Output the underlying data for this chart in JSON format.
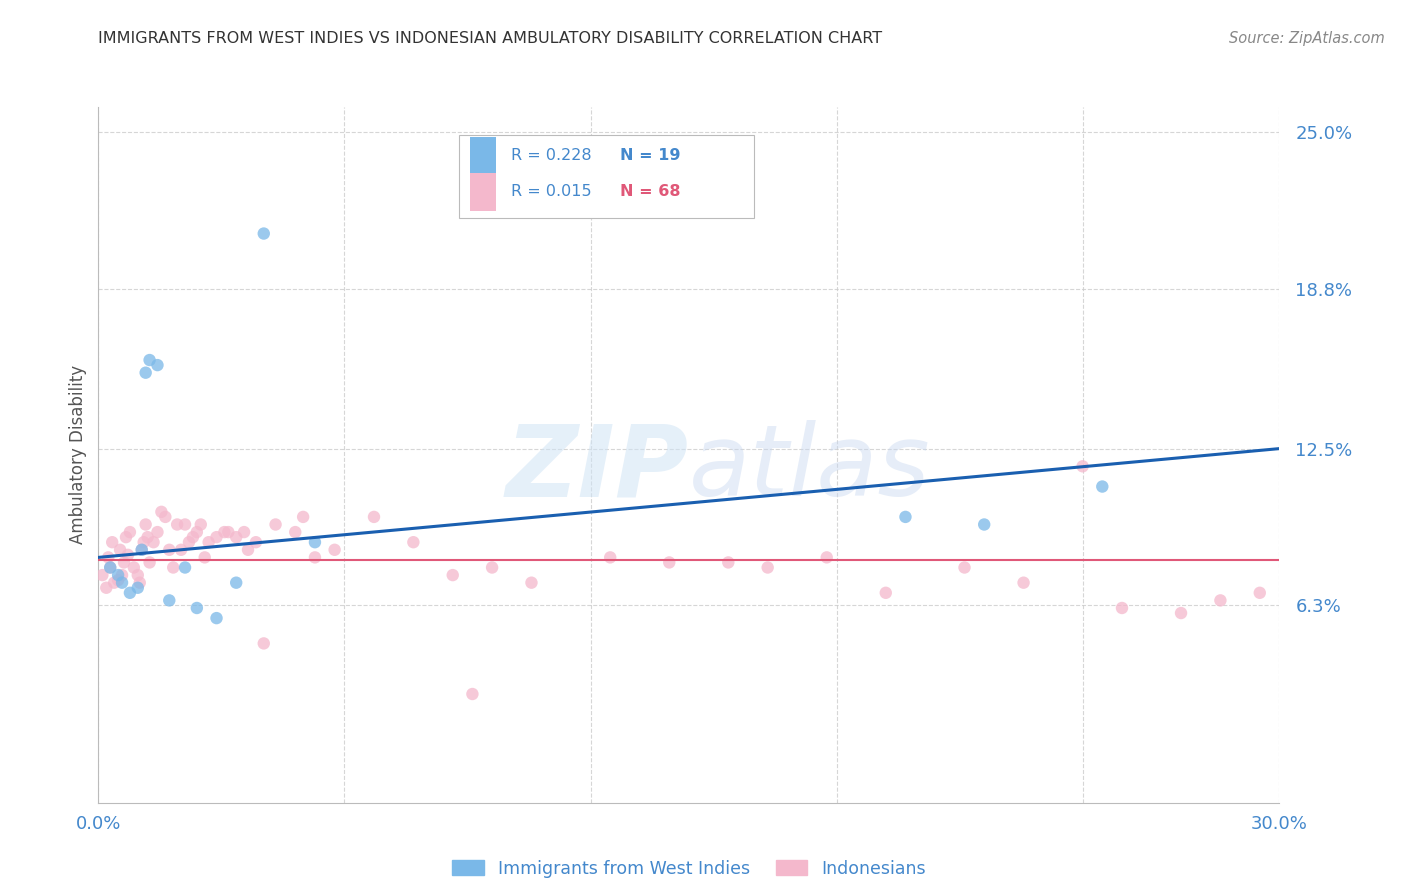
{
  "title": "IMMIGRANTS FROM WEST INDIES VS INDONESIAN AMBULATORY DISABILITY CORRELATION CHART",
  "source": "Source: ZipAtlas.com",
  "ylabel": "Ambulatory Disability",
  "xmin": 0.0,
  "xmax": 30.0,
  "ymin": -1.5,
  "ymax": 26.0,
  "yticks": [
    6.3,
    12.5,
    18.8,
    25.0
  ],
  "ytick_labels": [
    "6.3%",
    "12.5%",
    "18.8%",
    "25.0%"
  ],
  "legend_r1": "R = 0.228",
  "legend_n1": "N = 19",
  "legend_r2": "R = 0.015",
  "legend_n2": "N = 68",
  "label_west_indies": "Immigrants from West Indies",
  "label_indonesians": "Indonesians",
  "color_blue": "#7ab8e8",
  "color_pink": "#f4b8cc",
  "color_line_blue": "#1a5fb0",
  "color_line_pink": "#e05878",
  "color_title": "#333333",
  "color_source": "#888888",
  "color_axis_label": "#4488cc",
  "color_legend_r": "#4488cc",
  "color_legend_n_blue": "#4488cc",
  "color_legend_n_pink": "#e05878",
  "west_indies_x": [
    0.3,
    0.5,
    0.6,
    0.8,
    1.0,
    1.1,
    1.2,
    1.3,
    1.5,
    1.8,
    2.2,
    2.5,
    3.0,
    3.5,
    4.2,
    5.5,
    20.5,
    22.5,
    25.5
  ],
  "west_indies_y": [
    7.8,
    7.5,
    7.2,
    6.8,
    7.0,
    8.5,
    15.5,
    16.0,
    15.8,
    6.5,
    7.8,
    6.2,
    5.8,
    7.2,
    21.0,
    8.8,
    9.8,
    9.5,
    11.0
  ],
  "indonesians_x": [
    0.1,
    0.2,
    0.25,
    0.3,
    0.35,
    0.4,
    0.5,
    0.55,
    0.6,
    0.65,
    0.7,
    0.75,
    0.8,
    0.9,
    1.0,
    1.05,
    1.1,
    1.15,
    1.2,
    1.25,
    1.3,
    1.4,
    1.5,
    1.6,
    1.7,
    1.8,
    1.9,
    2.0,
    2.1,
    2.2,
    2.3,
    2.4,
    2.5,
    2.6,
    2.7,
    2.8,
    3.0,
    3.2,
    3.3,
    3.5,
    3.7,
    3.8,
    4.0,
    4.2,
    4.5,
    5.0,
    5.2,
    5.5,
    6.0,
    7.0,
    8.0,
    9.0,
    9.5,
    10.0,
    11.0,
    13.0,
    14.5,
    16.0,
    17.0,
    18.5,
    20.0,
    22.0,
    23.5,
    25.0,
    26.0,
    27.5,
    28.5,
    29.5
  ],
  "indonesians_y": [
    7.5,
    7.0,
    8.2,
    7.8,
    8.8,
    7.2,
    7.3,
    8.5,
    7.5,
    8.0,
    9.0,
    8.3,
    9.2,
    7.8,
    7.5,
    7.2,
    8.5,
    8.8,
    9.5,
    9.0,
    8.0,
    8.8,
    9.2,
    10.0,
    9.8,
    8.5,
    7.8,
    9.5,
    8.5,
    9.5,
    8.8,
    9.0,
    9.2,
    9.5,
    8.2,
    8.8,
    9.0,
    9.2,
    9.2,
    9.0,
    9.2,
    8.5,
    8.8,
    4.8,
    9.5,
    9.2,
    9.8,
    8.2,
    8.5,
    9.8,
    8.8,
    7.5,
    2.8,
    7.8,
    7.2,
    8.2,
    8.0,
    8.0,
    7.8,
    8.2,
    6.8,
    7.8,
    7.2,
    11.8,
    6.2,
    6.0,
    6.5,
    6.8
  ],
  "blue_trend_x0": 0.0,
  "blue_trend_x1": 30.0,
  "blue_trend_y0": 8.2,
  "blue_trend_y1": 12.5,
  "pink_trend_y": 8.1,
  "watermark_zip": "ZIP",
  "watermark_atlas": "atlas",
  "background_color": "#ffffff",
  "grid_color": "#cccccc",
  "grid_alpha": 0.8,
  "scatter_size": 80,
  "scatter_alpha": 0.75
}
